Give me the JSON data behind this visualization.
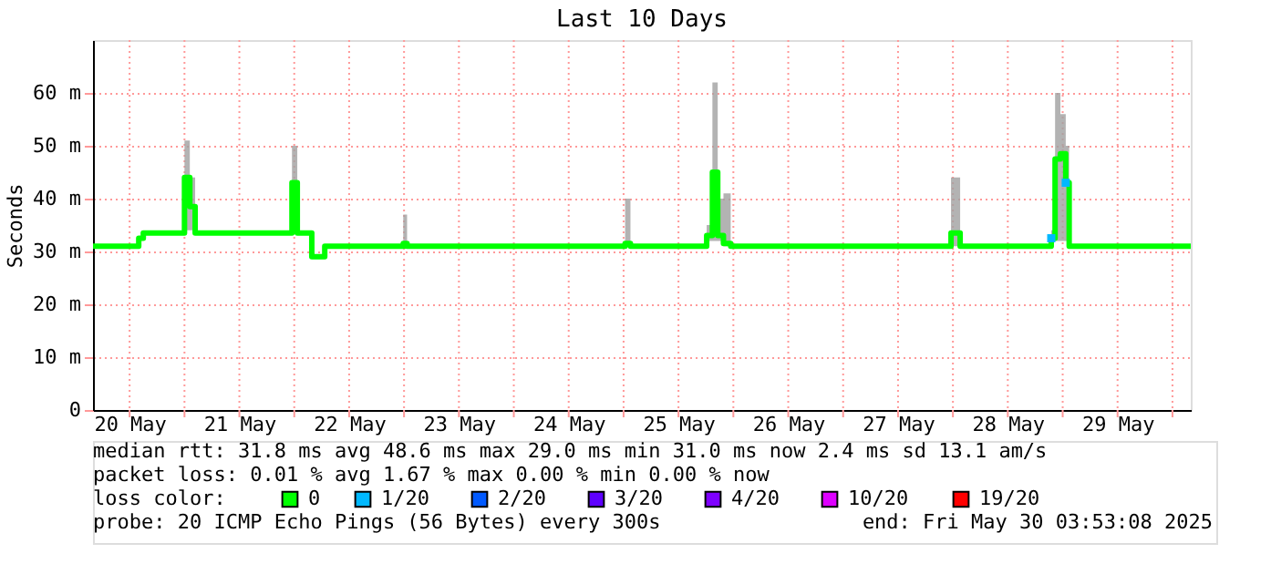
{
  "chart_data": {
    "type": "step",
    "title": "Last 10 Days",
    "ylabel": "Seconds",
    "xlim": [
      "2025-05-20T04:00",
      "2025-05-30T04:00"
    ],
    "xticks": [
      {
        "value": "2025-05-20T12:00",
        "label": "20 May"
      },
      {
        "value": "2025-05-21T00:00",
        "label": null
      },
      {
        "value": "2025-05-21T12:00",
        "label": "21 May"
      },
      {
        "value": "2025-05-22T00:00",
        "label": null
      },
      {
        "value": "2025-05-22T12:00",
        "label": "22 May"
      },
      {
        "value": "2025-05-23T00:00",
        "label": null
      },
      {
        "value": "2025-05-23T12:00",
        "label": "23 May"
      },
      {
        "value": "2025-05-24T00:00",
        "label": null
      },
      {
        "value": "2025-05-24T12:00",
        "label": "24 May"
      },
      {
        "value": "2025-05-25T00:00",
        "label": null
      },
      {
        "value": "2025-05-25T12:00",
        "label": "25 May"
      },
      {
        "value": "2025-05-26T00:00",
        "label": null
      },
      {
        "value": "2025-05-26T12:00",
        "label": "26 May"
      },
      {
        "value": "2025-05-27T00:00",
        "label": null
      },
      {
        "value": "2025-05-27T12:00",
        "label": "27 May"
      },
      {
        "value": "2025-05-28T00:00",
        "label": null
      },
      {
        "value": "2025-05-28T12:00",
        "label": "28 May"
      },
      {
        "value": "2025-05-29T00:00",
        "label": null
      },
      {
        "value": "2025-05-29T12:00",
        "label": "29 May"
      },
      {
        "value": "2025-05-30T00:00",
        "label": null
      }
    ],
    "ylim": [
      0,
      70
    ],
    "yticks": [
      0,
      {
        "value": 10,
        "label": "10 m"
      },
      {
        "value": 20,
        "label": "20 m"
      },
      {
        "value": 30,
        "label": "30 m"
      },
      {
        "value": 40,
        "label": "40 m"
      },
      {
        "value": 50,
        "label": "50 m"
      },
      {
        "value": 60,
        "label": "60 m"
      }
    ],
    "grid": true,
    "legend": "bottom",
    "legend_title": "loss color:",
    "series": [
      {
        "name": "0",
        "color": "#00ff00",
        "x": [
          "2025-05-20T04:00",
          "2025-05-20T14:00",
          "2025-05-20T15:00",
          "2025-05-21T00:00",
          "2025-05-21T01:10",
          "2025-05-21T02:20",
          "2025-05-21T23:30",
          "2025-05-22T00:40",
          "2025-05-22T03:50",
          "2025-05-22T06:40",
          "2025-05-22T23:50",
          "2025-05-23T00:40",
          "2025-05-25T00:20",
          "2025-05-25T01:30",
          "2025-05-25T18:10",
          "2025-05-25T19:25",
          "2025-05-25T20:35",
          "2025-05-25T21:50",
          "2025-05-25T23:25",
          "2025-05-27T23:35",
          "2025-05-28T01:35",
          "2025-05-28T21:30",
          "2025-05-28T22:20",
          "2025-05-28T23:30",
          "2025-05-29T00:40",
          "2025-05-29T01:25",
          "2025-05-30T04:00"
        ],
        "values": [
          31,
          32.5,
          33.5,
          44,
          38.5,
          33.5,
          43,
          33.5,
          29,
          31,
          31.5,
          31,
          31.5,
          31,
          33,
          45,
          33,
          31.5,
          31,
          33.5,
          31,
          32.5,
          47.5,
          48.5,
          43,
          31,
          31
        ],
        "lower": [
          31,
          32.5,
          33.5,
          34,
          34,
          33.5,
          34,
          33.5,
          29,
          31,
          31,
          31,
          31,
          31,
          32,
          32,
          32,
          31,
          31,
          31,
          31,
          32,
          32,
          32,
          32,
          31,
          31
        ],
        "upper": [
          31,
          32.5,
          33.5,
          51,
          44,
          33.5,
          50,
          33.5,
          29,
          31,
          37,
          31,
          40,
          31,
          35,
          62,
          40,
          41,
          31,
          44,
          31,
          34,
          60,
          56,
          50,
          31,
          31
        ]
      },
      {
        "name": "1/20",
        "color": "#00b8ff",
        "type": "scatter",
        "marker": "square",
        "x": [
          "2025-05-28T21:30",
          "2025-05-29T00:40"
        ],
        "values": [
          32.5,
          43
        ]
      },
      {
        "name": "2/20",
        "color": "#0059ff",
        "type": "scatter"
      },
      {
        "name": "3/20",
        "color": "#5e00ff",
        "type": "scatter"
      },
      {
        "name": "4/20",
        "color": "#7e00ff",
        "type": "scatter"
      },
      {
        "name": "10/20",
        "color": "#dd00ff",
        "type": "scatter"
      },
      {
        "name": "19/20",
        "color": "#ff0000",
        "type": "scatter"
      }
    ],
    "annotations": [
      "median rtt:  31.8 ms avg  48.6 ms max  29.0 ms min  31.0 ms now  2.4 ms sd  13.1   am/s",
      "packet loss: 0.01 % avg  1.67 % max  0.00 % min  0.00 % now",
      "probe:       20 ICMP Echo Pings (56 Bytes) every 300s",
      "end: Fri May 30 03:53:08 2025"
    ]
  }
}
